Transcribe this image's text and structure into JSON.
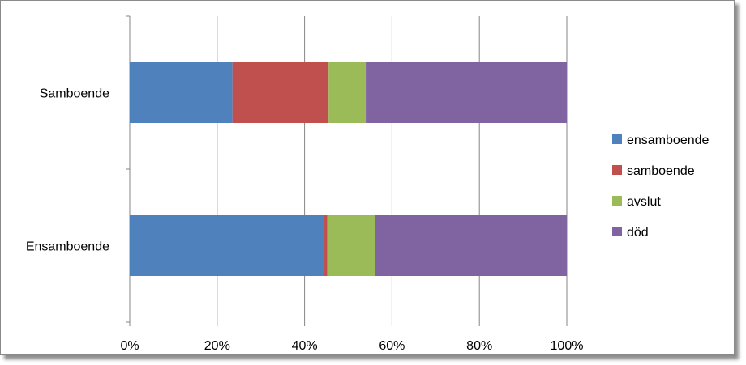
{
  "chart_data": {
    "type": "bar",
    "orientation": "horizontal",
    "stacked": "100%",
    "categories": [
      "Samboende",
      "Ensamboende"
    ],
    "series": [
      {
        "name": "ensamboende",
        "color": "#4F81BD",
        "values": [
          23.5,
          44.5
        ]
      },
      {
        "name": "samboende",
        "color": "#C0504D",
        "values": [
          22.0,
          0.7
        ]
      },
      {
        "name": "avslut",
        "color": "#9BBB59",
        "values": [
          8.5,
          11.0
        ]
      },
      {
        "name": "död",
        "color": "#8064A2",
        "values": [
          46.0,
          43.8
        ]
      }
    ],
    "x_ticks": [
      "0%",
      "20%",
      "40%",
      "60%",
      "80%",
      "100%"
    ],
    "xlim": [
      0,
      100
    ],
    "grid": "vertical",
    "legend_position": "right",
    "title": "",
    "xlabel": "",
    "ylabel": ""
  }
}
